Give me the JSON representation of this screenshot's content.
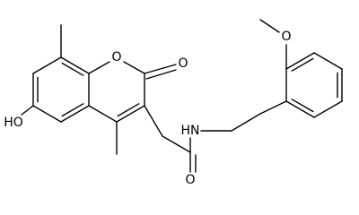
{
  "atoms": [
    {
      "label": "O"
    },
    {
      "label": "O"
    },
    {
      "label": "HO"
    },
    {
      "label": "HN"
    },
    {
      "label": "O"
    },
    {
      "label": "O"
    }
  ]
}
